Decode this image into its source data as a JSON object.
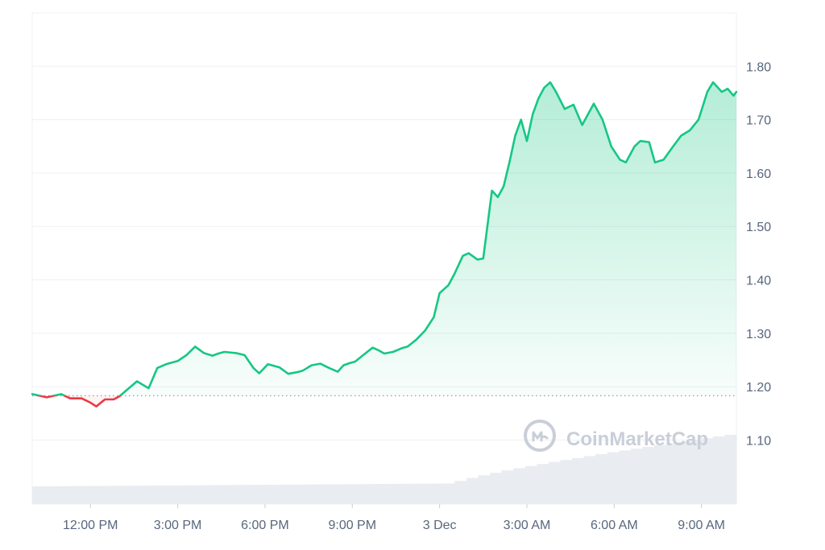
{
  "watermark": "CoinMarketCap",
  "colors": {
    "up": "#16c784",
    "down": "#ea3943",
    "grid": "#eef0f4",
    "baseline": "#9aa1ad",
    "volume": "#e9ecf1",
    "label": "#58667e"
  },
  "chart_data": {
    "type": "line",
    "title": "",
    "xlabel": "",
    "ylabel": "",
    "ylim": [
      0.98,
      1.9
    ],
    "y_ticks": [
      "1.10",
      "1.20",
      "1.30",
      "1.40",
      "1.50",
      "1.60",
      "1.70",
      "1.80"
    ],
    "x_ticks": [
      "12:00 PM",
      "3:00 PM",
      "6:00 PM",
      "9:00 PM",
      "3 Dec",
      "3:00 AM",
      "6:00 AM",
      "9:00 AM"
    ],
    "x_tick_hours": [
      12,
      15,
      18,
      21,
      24,
      27,
      30,
      33
    ],
    "x_range_hours": [
      10.0,
      34.2
    ],
    "baseline": 1.183,
    "grid": true,
    "series": [
      {
        "x": [
          10.0,
          10.5,
          11.0,
          11.3,
          11.7,
          12.0,
          12.2,
          12.5,
          12.8,
          13.0,
          13.3,
          13.6,
          14.0,
          14.3,
          14.6,
          15.0,
          15.3,
          15.6,
          15.9,
          16.2,
          16.4,
          16.6,
          17.0,
          17.3,
          17.6,
          17.8,
          18.1,
          18.5,
          18.8,
          19.1,
          19.3,
          19.6,
          19.9,
          20.2,
          20.5,
          20.7,
          20.9,
          21.1,
          21.4,
          21.7,
          21.9,
          22.1,
          22.4,
          22.7,
          22.9,
          23.2,
          23.5,
          23.8,
          24.0,
          24.3,
          24.5,
          24.8,
          25.0,
          25.3,
          25.5,
          25.8,
          26.0,
          26.2,
          26.4,
          26.6,
          26.8,
          27.0,
          27.2,
          27.4,
          27.6,
          27.8,
          28.0,
          28.3,
          28.6,
          28.9,
          29.1,
          29.3,
          29.6,
          29.9,
          30.2,
          30.4,
          30.7,
          30.9,
          31.2,
          31.4,
          31.7,
          32.0,
          32.3,
          32.6,
          32.9,
          33.2,
          33.4,
          33.7,
          33.9,
          34.1,
          34.2
        ],
        "values": [
          1.186,
          1.18,
          1.186,
          1.178,
          1.178,
          1.17,
          1.163,
          1.176,
          1.176,
          1.182,
          1.196,
          1.21,
          1.197,
          1.235,
          1.242,
          1.248,
          1.259,
          1.275,
          1.263,
          1.258,
          1.262,
          1.265,
          1.263,
          1.259,
          1.235,
          1.225,
          1.242,
          1.236,
          1.224,
          1.227,
          1.23,
          1.24,
          1.243,
          1.235,
          1.228,
          1.24,
          1.244,
          1.247,
          1.26,
          1.273,
          1.268,
          1.262,
          1.265,
          1.272,
          1.275,
          1.288,
          1.305,
          1.33,
          1.375,
          1.39,
          1.41,
          1.445,
          1.45,
          1.438,
          1.44,
          1.567,
          1.555,
          1.575,
          1.62,
          1.67,
          1.7,
          1.66,
          1.71,
          1.74,
          1.76,
          1.77,
          1.752,
          1.72,
          1.728,
          1.69,
          1.71,
          1.73,
          1.7,
          1.65,
          1.625,
          1.62,
          1.65,
          1.66,
          1.658,
          1.62,
          1.625,
          1.648,
          1.67,
          1.68,
          1.7,
          1.752,
          1.77,
          1.752,
          1.758,
          1.745,
          1.752
        ]
      }
    ]
  }
}
